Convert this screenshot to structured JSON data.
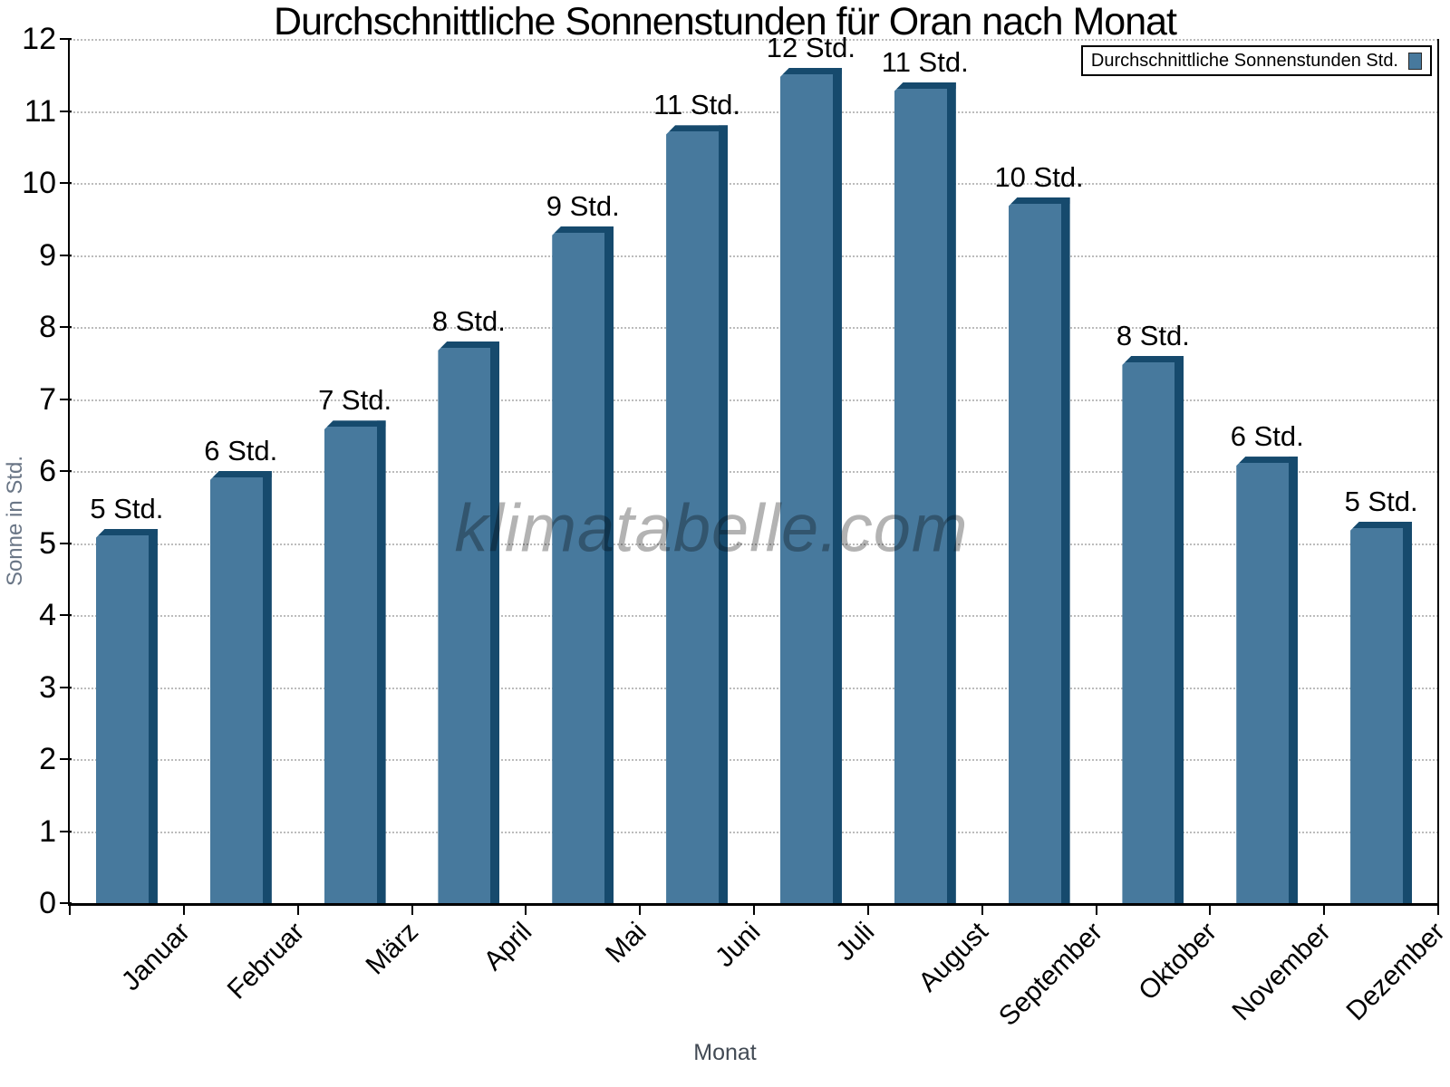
{
  "watermark": "klimatabelle.com",
  "chart_data": {
    "type": "bar",
    "title": "Durchschnittliche Sonnenstunden für Oran nach Monat",
    "xlabel": "Monat",
    "ylabel": "Sonne in Std.",
    "categories": [
      "Januar",
      "Februar",
      "März",
      "April",
      "Mai",
      "Juni",
      "Juli",
      "August",
      "September",
      "Oktober",
      "November",
      "Dezember"
    ],
    "values": [
      5.2,
      6.0,
      6.7,
      7.8,
      9.4,
      10.8,
      11.6,
      11.4,
      9.8,
      7.6,
      6.2,
      5.3
    ],
    "bar_labels": [
      "5 Std.",
      "6 Std.",
      "7 Std.",
      "8 Std.",
      "9 Std.",
      "11 Std.",
      "12 Std.",
      "11 Std.",
      "10 Std.",
      "8 Std.",
      "6 Std.",
      "5 Std."
    ],
    "ylim": [
      0,
      12
    ],
    "yticks": [
      0,
      1,
      2,
      3,
      4,
      5,
      6,
      7,
      8,
      9,
      10,
      11,
      12
    ],
    "grid": "horizontal-dotted",
    "legend": {
      "label": "Durchschnittliche Sonnenstunden Std.",
      "position": "top-right"
    },
    "colors": {
      "bar_fill": "#47799d",
      "bar_edge": "#164a6d",
      "grid": "#bcbcbc",
      "axis": "#000000",
      "axis_title_y": "#6a7686",
      "axis_title_x": "#424a54",
      "watermark": "#b3b3b3"
    }
  }
}
